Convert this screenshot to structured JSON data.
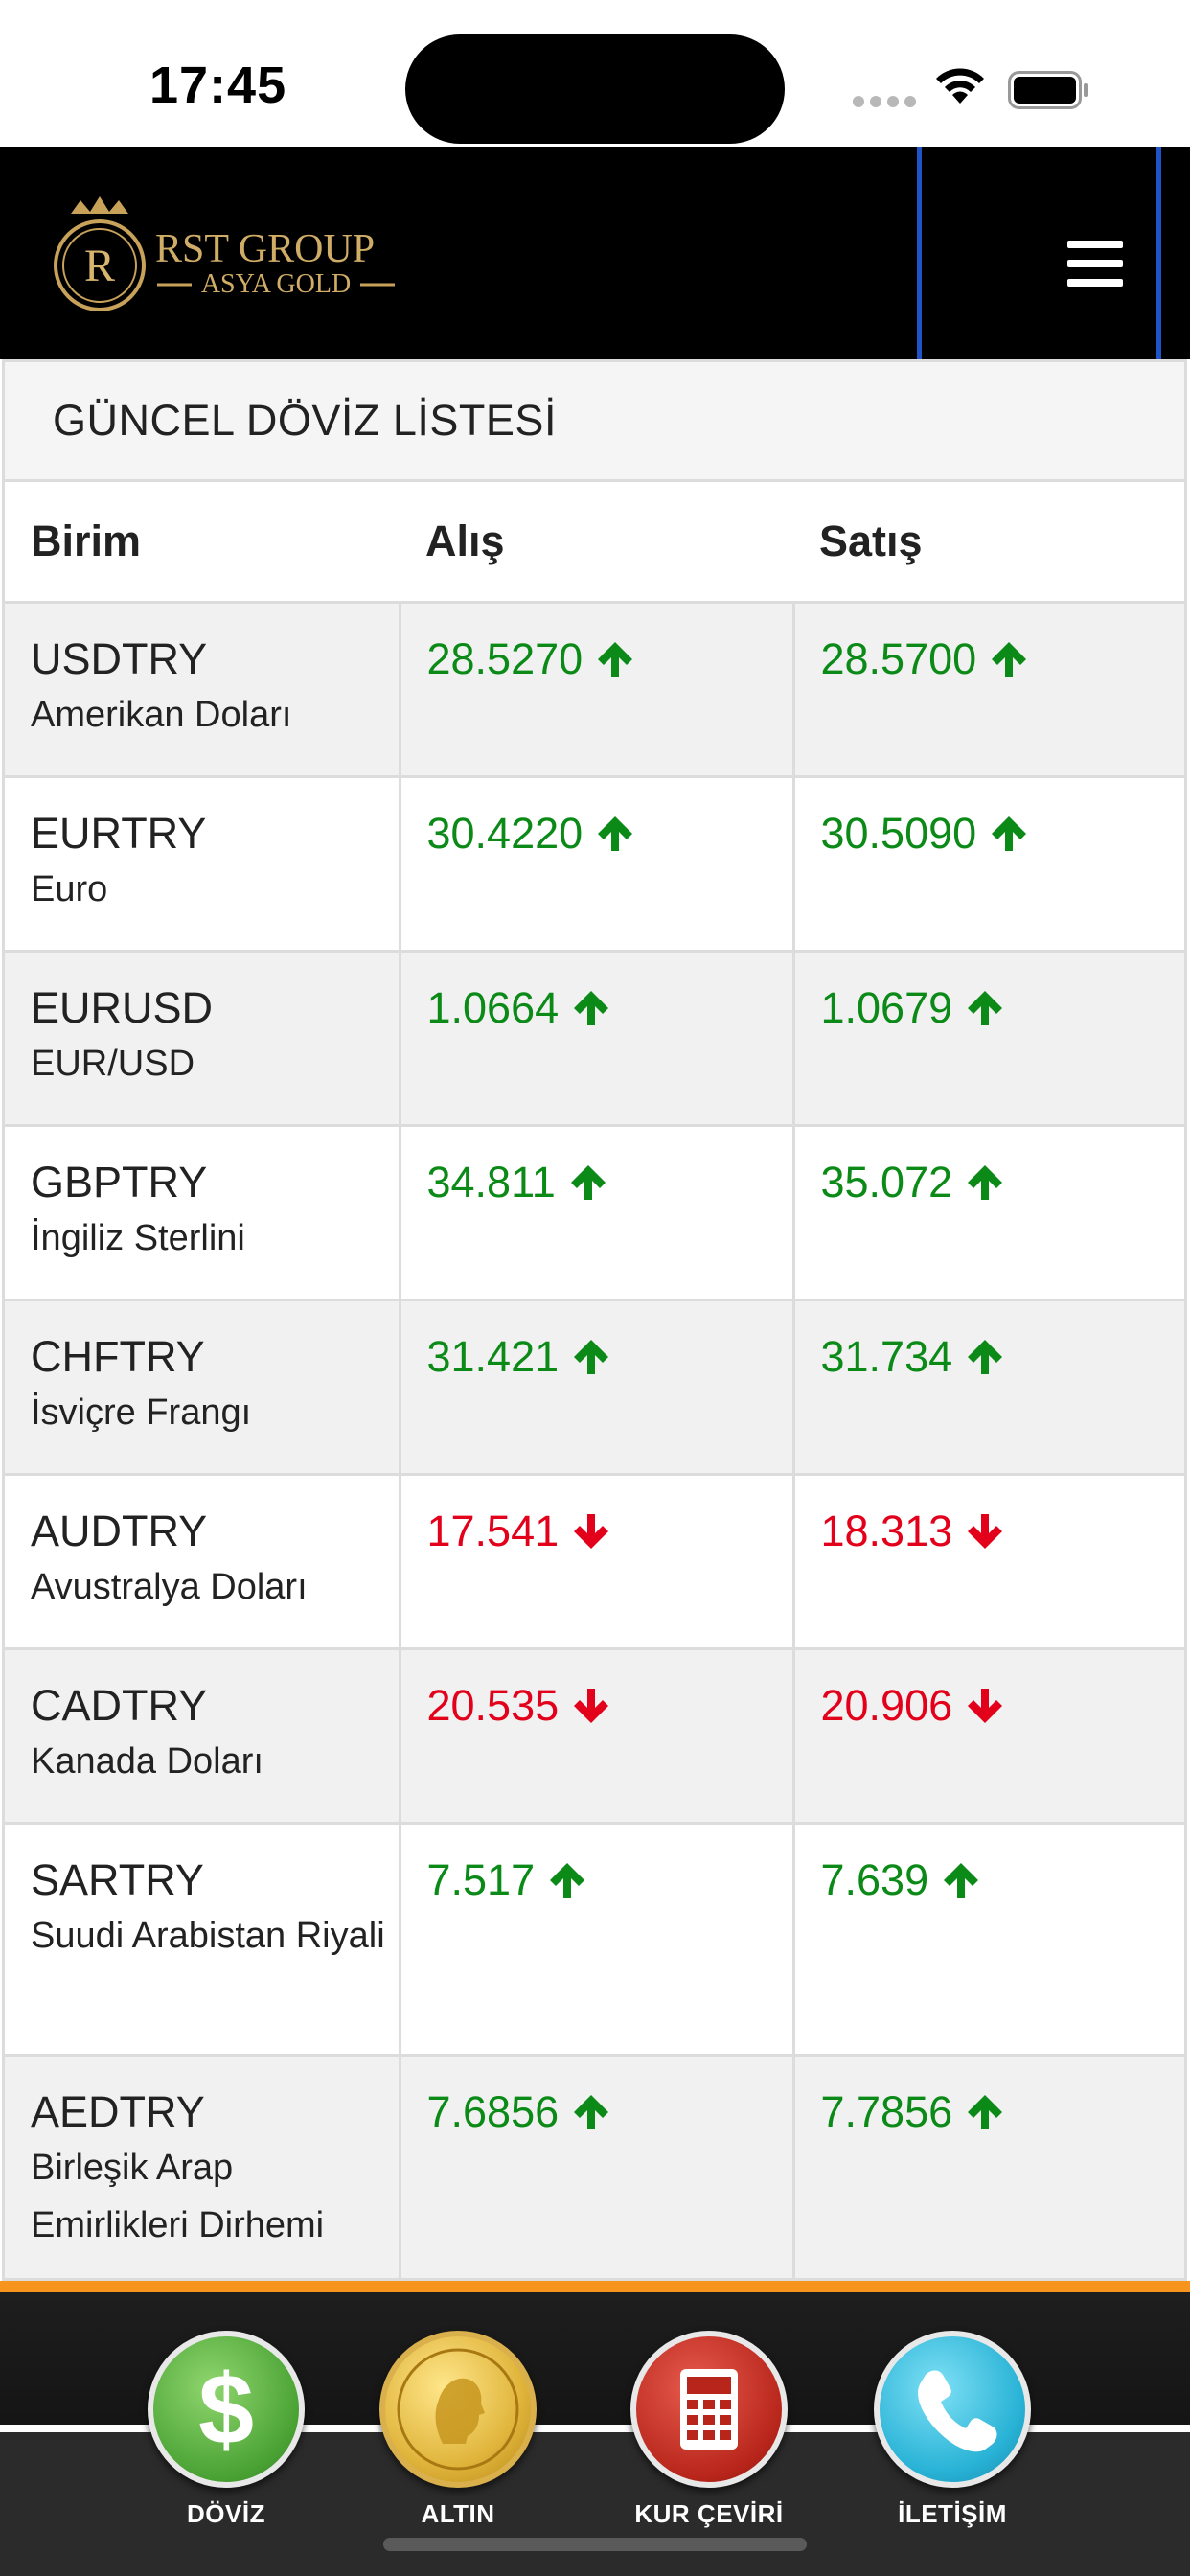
{
  "status_bar": {
    "time": "17:45"
  },
  "header": {
    "logo_text": "RST GROUP",
    "logo_subtext": "ASYA GOLD",
    "logo_initial": "R"
  },
  "panel": {
    "title": "GÜNCEL DÖVİZ LİSTESİ"
  },
  "table": {
    "headers": {
      "unit": "Birim",
      "buy": "Alış",
      "sell": "Satış"
    },
    "rows": [
      {
        "code": "USDTRY",
        "name": "Amerikan Doları",
        "buy": "28.5270",
        "sell": "28.5700",
        "direction": "up"
      },
      {
        "code": "EURTRY",
        "name": "Euro",
        "buy": "30.4220",
        "sell": "30.5090",
        "direction": "up"
      },
      {
        "code": "EURUSD",
        "name": "EUR/USD",
        "buy": "1.0664",
        "sell": "1.0679",
        "direction": "up"
      },
      {
        "code": "GBPTRY",
        "name": "İngiliz Sterlini",
        "buy": "34.811",
        "sell": "35.072",
        "direction": "up"
      },
      {
        "code": "CHFTRY",
        "name": "İsviçre Frangı",
        "buy": "31.421",
        "sell": "31.734",
        "direction": "up"
      },
      {
        "code": "AUDTRY",
        "name": "Avustralya Doları",
        "buy": "17.541",
        "sell": "18.313",
        "direction": "down"
      },
      {
        "code": "CADTRY",
        "name": "Kanada Doları",
        "buy": "20.535",
        "sell": "20.906",
        "direction": "down"
      },
      {
        "code": "SARTRY",
        "name": "Suudi Arabistan Riyali",
        "buy": "7.517",
        "sell": "7.639",
        "direction": "up"
      },
      {
        "code": "AEDTRY",
        "name": "Birleşik Arap Emirlikleri Dirhemi",
        "buy": "7.6856",
        "sell": "7.7856",
        "direction": "up"
      }
    ]
  },
  "bottom_nav": {
    "items": [
      {
        "label": "DÖVİZ",
        "icon": "dollar-icon"
      },
      {
        "label": "ALTIN",
        "icon": "gold-coin-icon"
      },
      {
        "label": "KUR ÇEVİRİ",
        "icon": "calculator-icon"
      },
      {
        "label": "İLETİŞİM",
        "icon": "phone-icon"
      }
    ]
  },
  "colors": {
    "up": "#0b8a17",
    "down": "#e3001b",
    "accent_orange": "#f7941d",
    "header_bg": "#000000",
    "logo_gold": "#c9a25a"
  }
}
